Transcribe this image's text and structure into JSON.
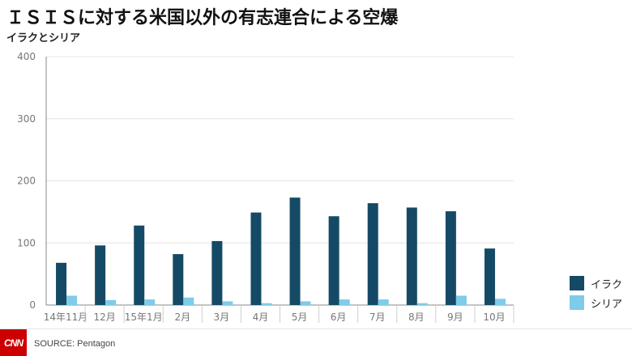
{
  "title": "ＩＳＩＳに対する米国以外の有志連合による空爆",
  "subtitle": "イラクとシリア",
  "source": "SOURCE: Pentagon",
  "logo": "CNN",
  "colors": {
    "iraq": "#154a66",
    "syria": "#7ecbea",
    "grid": "#e4e4e4",
    "axis": "#8a8a8a"
  },
  "legend": [
    {
      "label": "イラク",
      "color": "#154a66"
    },
    {
      "label": "シリア",
      "color": "#7ecbea"
    }
  ],
  "chart_data": {
    "type": "bar",
    "categories": [
      "14年11月",
      "12月",
      "15年1月",
      "2月",
      "3月",
      "4月",
      "5月",
      "6月",
      "7月",
      "8月",
      "9月",
      "10月"
    ],
    "series": [
      {
        "name": "イラク",
        "values": [
          68,
          96,
          128,
          82,
          103,
          149,
          173,
          143,
          164,
          157,
          151,
          91
        ]
      },
      {
        "name": "シリア",
        "values": [
          15,
          8,
          9,
          12,
          6,
          3,
          6,
          9,
          9,
          3,
          15,
          10
        ]
      }
    ],
    "ylim": [
      0,
      400
    ],
    "yticks": [
      0,
      100,
      200,
      300,
      400
    ],
    "grid": true,
    "legend_position": "bottom-right"
  }
}
